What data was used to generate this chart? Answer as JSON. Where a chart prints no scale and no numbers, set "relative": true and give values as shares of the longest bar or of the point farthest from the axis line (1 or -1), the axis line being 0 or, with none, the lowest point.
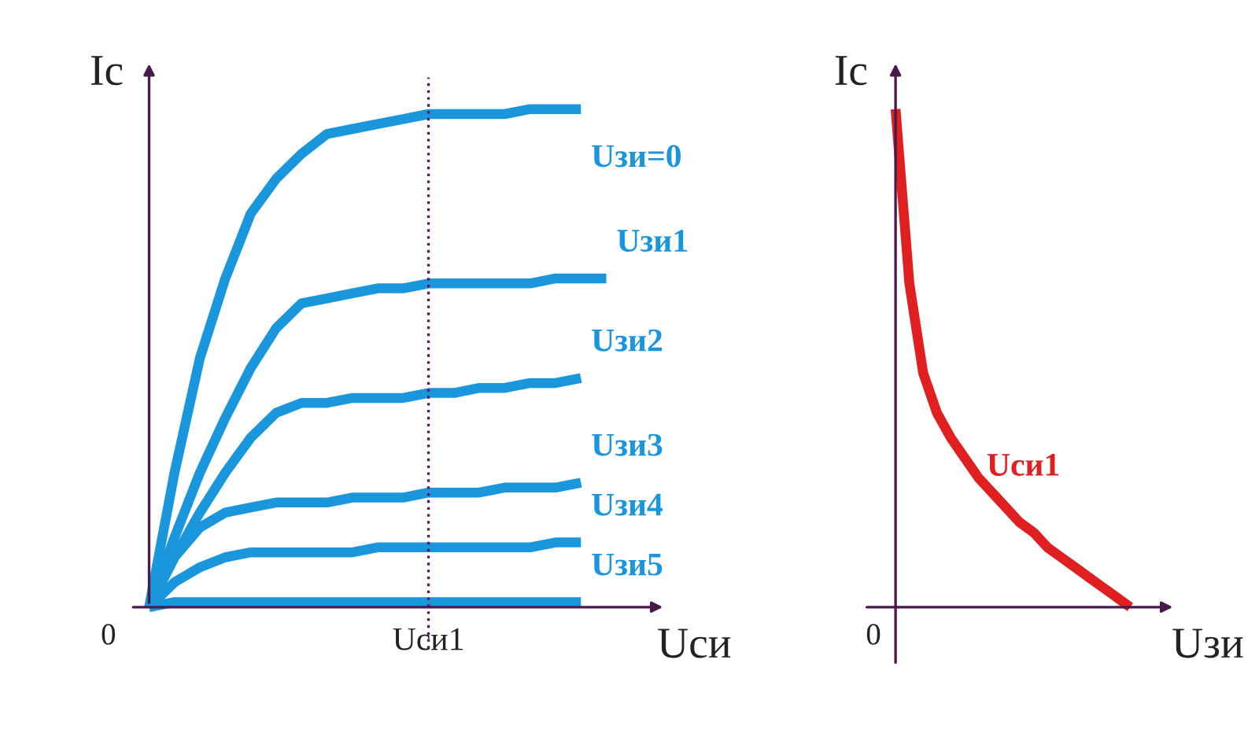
{
  "chart_data": [
    {
      "type": "line",
      "relative": true,
      "xlabel": "Uси",
      "ylabel": "Iс",
      "annotations": [
        "0",
        "Uси1"
      ],
      "legend": false,
      "marker": "none",
      "line_style": "solid",
      "categories": [
        null,
        null,
        null,
        null,
        null,
        null,
        null,
        null,
        null,
        null,
        null,
        null,
        null,
        null,
        null,
        null,
        null,
        null,
        null
      ],
      "series": [
        {
          "name": "Uзи=0",
          "color": "#1a96dc",
          "values": [
            0,
            0.27,
            0.5,
            0.66,
            0.79,
            0.86,
            0.91,
            0.95,
            0.96,
            0.97,
            0.98,
            0.99,
            0.99,
            0.99,
            0.99,
            1,
            1,
            1,
            null
          ]
        },
        {
          "name": "Uзи1",
          "color": "#1a96dc",
          "values": [
            0,
            0.14,
            0.27,
            0.38,
            0.48,
            0.56,
            0.61,
            0.62,
            0.63,
            0.64,
            0.64,
            0.65,
            0.65,
            0.65,
            0.65,
            0.65,
            0.66,
            0.66,
            0.66
          ]
        },
        {
          "name": "Uзи2",
          "color": "#1a96dc",
          "values": [
            0,
            0.1,
            0.19,
            0.27,
            0.34,
            0.39,
            0.41,
            0.41,
            0.42,
            0.42,
            0.42,
            0.43,
            0.43,
            0.44,
            0.44,
            0.45,
            0.45,
            0.46,
            null
          ]
        },
        {
          "name": "Uзи3",
          "color": "#1a96dc",
          "values": [
            0,
            0.1,
            0.16,
            0.19,
            0.2,
            0.21,
            0.21,
            0.21,
            0.22,
            0.22,
            0.22,
            0.23,
            0.23,
            0.23,
            0.24,
            0.24,
            0.24,
            0.25,
            null
          ]
        },
        {
          "name": "Uзи4",
          "color": "#1a96dc",
          "values": [
            0,
            0.05,
            0.08,
            0.1,
            0.11,
            0.11,
            0.11,
            0.11,
            0.11,
            0.12,
            0.12,
            0.12,
            0.12,
            0.12,
            0.12,
            0.12,
            0.13,
            0.13,
            null
          ]
        },
        {
          "name": "Uзи5",
          "color": "#1a96dc",
          "values": [
            0,
            0.01,
            0.01,
            0.01,
            0.01,
            0.01,
            0.01,
            0.01,
            0.01,
            0.01,
            0.01,
            0.01,
            0.01,
            0.01,
            0.01,
            0.01,
            0.01,
            0.01,
            null
          ]
        }
      ]
    },
    {
      "type": "line",
      "relative": true,
      "xlabel": "Uзи",
      "ylabel": "Iс",
      "annotations": [
        "0"
      ],
      "legend": false,
      "marker": "none",
      "line_style": "solid",
      "categories": [
        null,
        null,
        null,
        null,
        null,
        null,
        null,
        null,
        null,
        null,
        null,
        null,
        null,
        null,
        null,
        null,
        null,
        null
      ],
      "series": [
        {
          "name": "Uси1",
          "color": "#e02020",
          "values": [
            1,
            0.65,
            0.47,
            0.39,
            0.34,
            0.3,
            0.26,
            0.23,
            0.2,
            0.17,
            0.15,
            0.12,
            0.1,
            0.08,
            0.06,
            0.04,
            0.02,
            0
          ]
        }
      ]
    }
  ]
}
